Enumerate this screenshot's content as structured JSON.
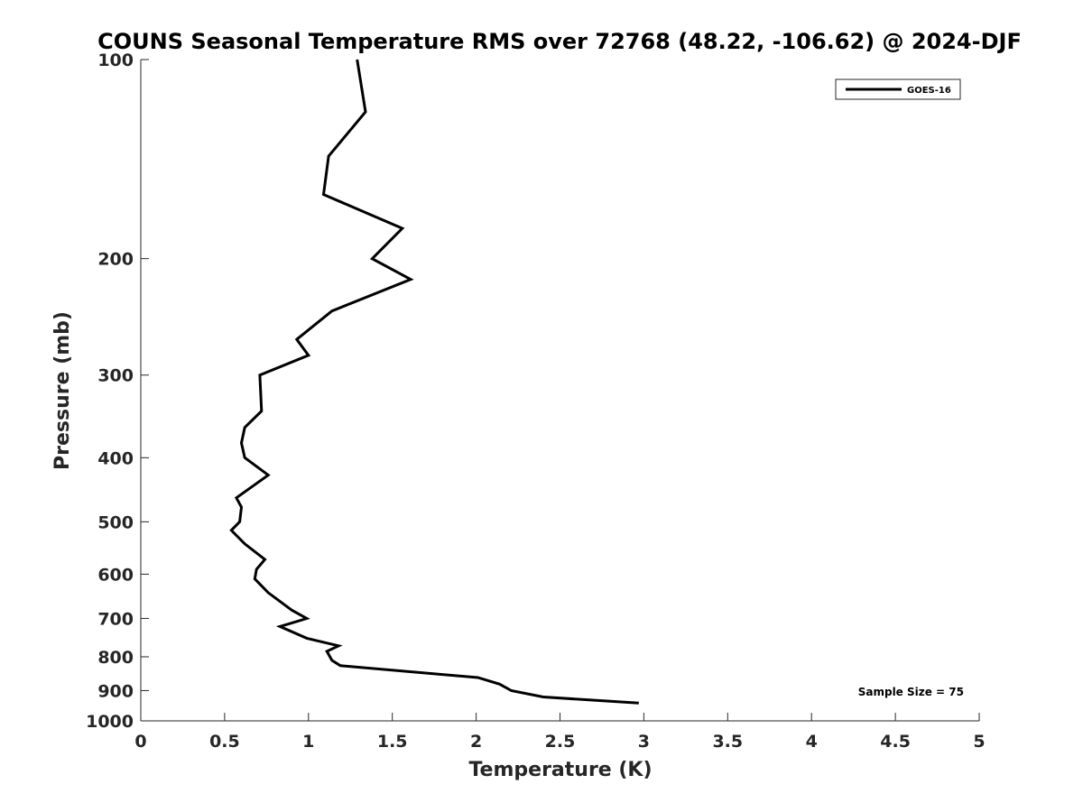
{
  "chart_data": {
    "type": "line",
    "title": "COUNS Seasonal Temperature RMS over 72768 (48.22, -106.62) @ 2024-DJF",
    "xlabel": "Temperature (K)",
    "ylabel": "Pressure (mb)",
    "xlim": [
      0,
      5
    ],
    "ylim": [
      1000,
      100
    ],
    "y_scale": "log",
    "y_reversed": true,
    "x_ticks": [
      "0",
      "0.5",
      "1",
      "1.5",
      "2",
      "2.5",
      "3",
      "3.5",
      "4",
      "4.5",
      "5"
    ],
    "x_tick_values": [
      0,
      0.5,
      1,
      1.5,
      2,
      2.5,
      3,
      3.5,
      4,
      4.5,
      5
    ],
    "y_ticks": [
      "100",
      "200",
      "300",
      "400",
      "500",
      "600",
      "700",
      "800",
      "900",
      "1000"
    ],
    "y_tick_values": [
      100,
      200,
      300,
      400,
      500,
      600,
      700,
      800,
      900,
      1000
    ],
    "grid": false,
    "legend_position": "top-right",
    "series": [
      {
        "name": "GOES-16",
        "color": "#000000",
        "points": [
          {
            "x": 1.29,
            "p": 100
          },
          {
            "x": 1.34,
            "p": 120
          },
          {
            "x": 1.12,
            "p": 140
          },
          {
            "x": 1.09,
            "p": 160
          },
          {
            "x": 1.56,
            "p": 180
          },
          {
            "x": 1.38,
            "p": 200
          },
          {
            "x": 1.61,
            "p": 215
          },
          {
            "x": 1.14,
            "p": 240
          },
          {
            "x": 0.93,
            "p": 265
          },
          {
            "x": 1.0,
            "p": 280
          },
          {
            "x": 0.71,
            "p": 300
          },
          {
            "x": 0.72,
            "p": 340
          },
          {
            "x": 0.62,
            "p": 360
          },
          {
            "x": 0.6,
            "p": 380
          },
          {
            "x": 0.62,
            "p": 400
          },
          {
            "x": 0.76,
            "p": 425
          },
          {
            "x": 0.57,
            "p": 460
          },
          {
            "x": 0.6,
            "p": 475
          },
          {
            "x": 0.59,
            "p": 500
          },
          {
            "x": 0.54,
            "p": 515
          },
          {
            "x": 0.62,
            "p": 540
          },
          {
            "x": 0.74,
            "p": 570
          },
          {
            "x": 0.69,
            "p": 590
          },
          {
            "x": 0.68,
            "p": 610
          },
          {
            "x": 0.76,
            "p": 640
          },
          {
            "x": 0.9,
            "p": 680
          },
          {
            "x": 0.99,
            "p": 700
          },
          {
            "x": 0.83,
            "p": 720
          },
          {
            "x": 0.99,
            "p": 750
          },
          {
            "x": 1.18,
            "p": 770
          },
          {
            "x": 1.11,
            "p": 785
          },
          {
            "x": 1.14,
            "p": 810
          },
          {
            "x": 1.19,
            "p": 825
          },
          {
            "x": 2.01,
            "p": 860
          },
          {
            "x": 2.14,
            "p": 880
          },
          {
            "x": 2.21,
            "p": 900
          },
          {
            "x": 2.4,
            "p": 920
          },
          {
            "x": 2.97,
            "p": 940
          }
        ]
      }
    ],
    "annotation": "Sample Size = 75"
  }
}
